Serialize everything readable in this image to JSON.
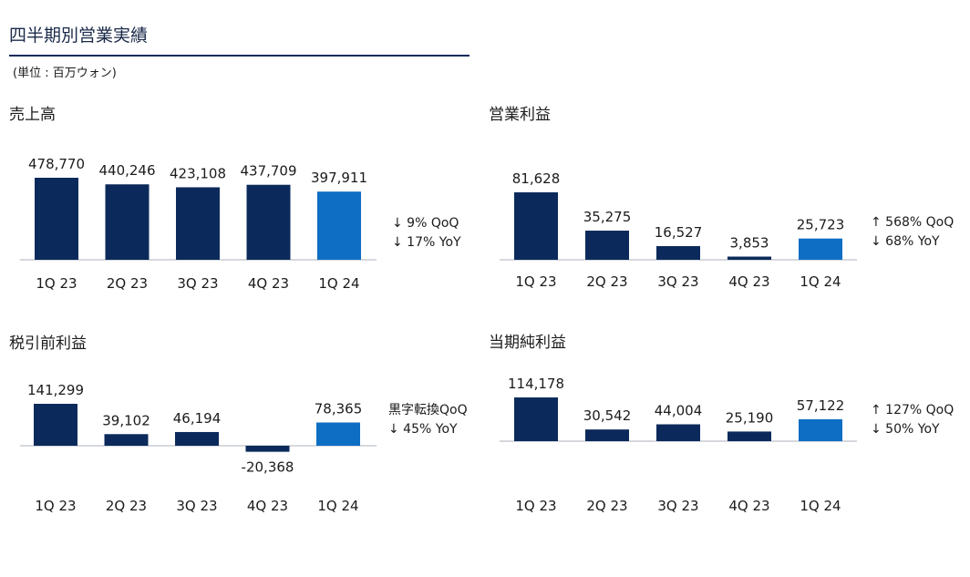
{
  "page": {
    "title": "四半期別営業実績",
    "unit_note": "(単位 : 百万ウォン)"
  },
  "colors": {
    "bar": "#0b2a5b",
    "highlight": "#0e6ec3",
    "axis": "#c8ccd2"
  },
  "chart_data": [
    {
      "type": "bar",
      "title": "売上高",
      "categories": [
        "1Q 23",
        "2Q 23",
        "3Q 23",
        "4Q 23",
        "1Q 24"
      ],
      "values": [
        478770,
        440246,
        423108,
        437709,
        397911
      ],
      "value_labels": [
        "478,770",
        "440,246",
        "423,108",
        "437,709",
        "397,911"
      ],
      "highlight_index": 4,
      "ylim": [
        0,
        478770
      ],
      "notes": [
        "↓ 9% QoQ",
        "↓ 17% YoY"
      ]
    },
    {
      "type": "bar",
      "title": "営業利益",
      "categories": [
        "1Q 23",
        "2Q 23",
        "3Q 23",
        "4Q 23",
        "1Q 24"
      ],
      "values": [
        81628,
        35275,
        16527,
        3853,
        25723
      ],
      "value_labels": [
        "81,628",
        "35,275",
        "16,527",
        "3,853",
        "25,723"
      ],
      "highlight_index": 4,
      "ylim": [
        0,
        81628
      ],
      "notes": [
        "↑ 568% QoQ",
        "↓ 68% YoY"
      ]
    },
    {
      "type": "bar",
      "title": "税引前利益",
      "categories": [
        "1Q 23",
        "2Q 23",
        "3Q 23",
        "4Q 23",
        "1Q 24"
      ],
      "values": [
        141299,
        39102,
        46194,
        -20368,
        78365
      ],
      "value_labels": [
        "141,299",
        "39,102",
        "46,194",
        "-20,368",
        "78,365"
      ],
      "highlight_index": 4,
      "ylim": [
        -20368,
        141299
      ],
      "notes": [
        "黒字転換QoQ",
        "↓ 45% YoY"
      ]
    },
    {
      "type": "bar",
      "title": "当期純利益",
      "categories": [
        "1Q 23",
        "2Q 23",
        "3Q 23",
        "4Q 23",
        "1Q 24"
      ],
      "values": [
        114178,
        30542,
        44004,
        25190,
        57122
      ],
      "value_labels": [
        "114,178",
        "30,542",
        "44,004",
        "25,190",
        "57,122"
      ],
      "highlight_index": 4,
      "ylim": [
        0,
        114178
      ],
      "notes": [
        "↑ 127% QoQ",
        "↓ 50% YoY"
      ]
    }
  ]
}
